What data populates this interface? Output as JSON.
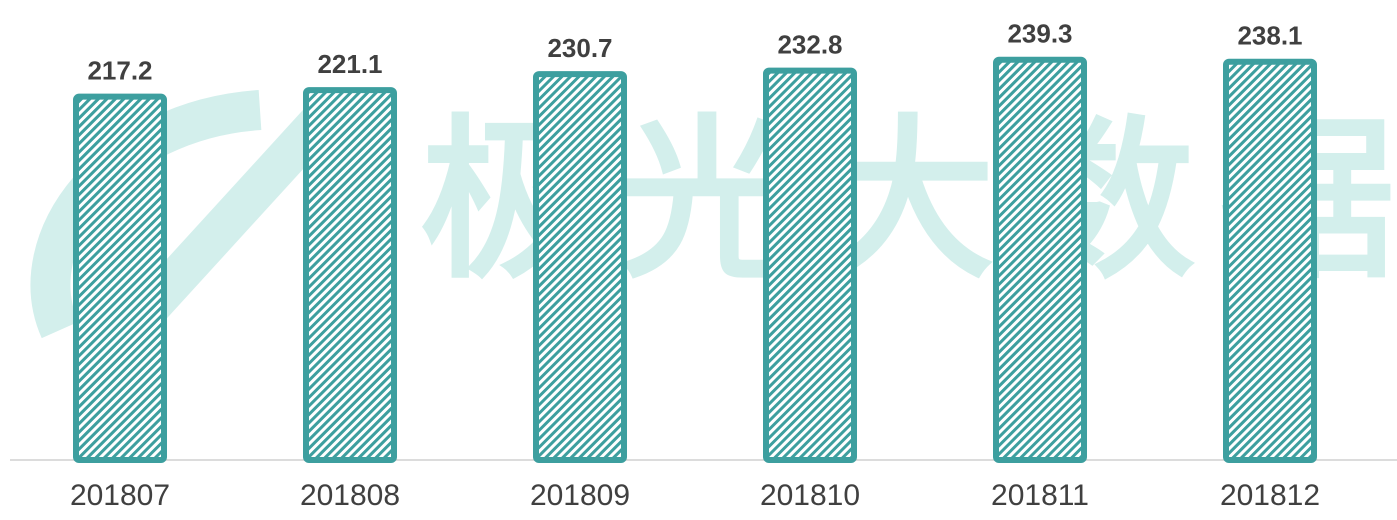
{
  "chart_data": {
    "type": "bar",
    "watermark": "极光大数据",
    "categories": [
      "201807",
      "201808",
      "201809",
      "201810",
      "201811",
      "201812"
    ],
    "values": [
      217.2,
      221.1,
      230.7,
      232.8,
      239.3,
      238.1
    ],
    "color": "#3d9f9f",
    "ylim": [
      0,
      275
    ]
  }
}
